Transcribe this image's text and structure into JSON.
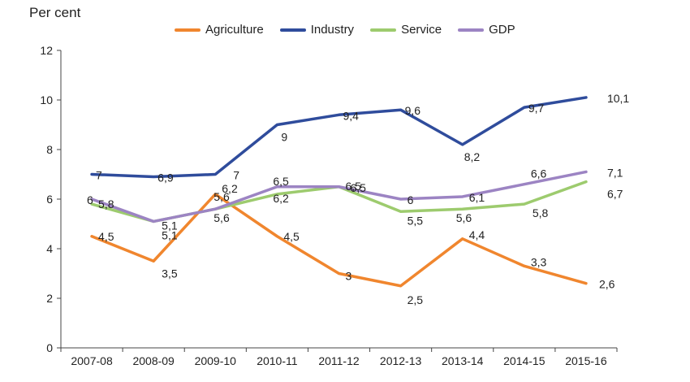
{
  "chart_data": {
    "type": "line",
    "title": "",
    "ylabel": "Per cent",
    "xlabel": "",
    "categories": [
      "2007-08",
      "2008-09",
      "2009-10",
      "2010-11",
      "2011-12",
      "2012-13",
      "2013-14",
      "2014-15",
      "2015-16"
    ],
    "ylim": [
      0,
      12
    ],
    "yticks": [
      0,
      2,
      4,
      6,
      8,
      10,
      12
    ],
    "grid": false,
    "legend_position": "top",
    "series": [
      {
        "name": "Agriculture",
        "color": "#F0862E",
        "values": [
          4.5,
          3.5,
          6.2,
          4.5,
          3,
          2.5,
          4.4,
          3.3,
          2.6
        ],
        "labels": [
          "4,5",
          "3,5",
          "6,2",
          "4,5",
          "3",
          "2,5",
          "4,4",
          "3,3",
          "2,6"
        ]
      },
      {
        "name": "Industry",
        "color": "#2F4C9C",
        "values": [
          7,
          6.9,
          7,
          9,
          9.4,
          9.6,
          8.2,
          9.7,
          10.1
        ],
        "labels": [
          "7",
          "6,9",
          "7",
          "9",
          "9,4",
          "9,6",
          "8,2",
          "9,7",
          "10,1"
        ]
      },
      {
        "name": "Service",
        "color": "#9DCB6E",
        "values": [
          5.8,
          5.1,
          5.6,
          6.2,
          6.5,
          5.5,
          5.6,
          5.8,
          6.7
        ],
        "labels": [
          "5,8",
          "5,1",
          "5,6",
          "6,2",
          "6,5",
          "5,5",
          "5,6",
          "5,8",
          "6,7"
        ]
      },
      {
        "name": "GDP",
        "color": "#9C84C3",
        "values": [
          6,
          5.1,
          5.6,
          6.5,
          6.5,
          6,
          6.1,
          6.6,
          7.1
        ],
        "labels": [
          "6",
          "5,1",
          "5,6",
          "6,5",
          "6,5",
          "6",
          "6,1",
          "6,6",
          "7,1"
        ]
      }
    ]
  }
}
